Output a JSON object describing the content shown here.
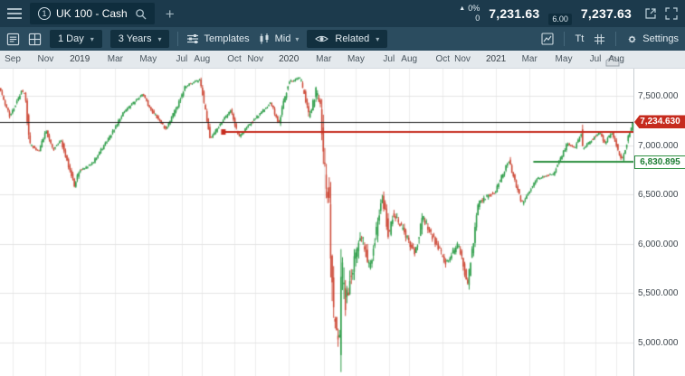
{
  "topbar": {
    "tab_number": "1",
    "instrument": "UK 100 - Cash",
    "add_tab": "+",
    "up_arrow": "▲",
    "change_pct": "0%",
    "change_points": "0",
    "sell_price": "7,231.63",
    "spread": "6.00",
    "buy_price": "7,237.63"
  },
  "toolbar": {
    "interval": "1 Day",
    "range": "3 Years",
    "templates_label": "Templates",
    "price_type_label": "Mid",
    "related_label": "Related",
    "text_tool_label": "Tt",
    "settings_label": "Settings",
    "chevron_down": "▾"
  },
  "chart_data": {
    "type": "candlestick",
    "instrument": "UK 100 - Cash",
    "interval": "1 Day",
    "range": "3 Years",
    "price_basis": "Mid",
    "x_labels": [
      {
        "label": "Sep",
        "t": 0.02
      },
      {
        "label": "Nov",
        "t": 0.072
      },
      {
        "label": "2019",
        "t": 0.126,
        "year": true
      },
      {
        "label": "Mar",
        "t": 0.182
      },
      {
        "label": "May",
        "t": 0.234
      },
      {
        "label": "Jul",
        "t": 0.287
      },
      {
        "label": "Aug",
        "t": 0.319
      },
      {
        "label": "Oct",
        "t": 0.37
      },
      {
        "label": "Nov",
        "t": 0.403
      },
      {
        "label": "2020",
        "t": 0.456,
        "year": true
      },
      {
        "label": "Mar",
        "t": 0.511
      },
      {
        "label": "May",
        "t": 0.562
      },
      {
        "label": "Jul",
        "t": 0.614
      },
      {
        "label": "Aug",
        "t": 0.646
      },
      {
        "label": "Oct",
        "t": 0.699
      },
      {
        "label": "Nov",
        "t": 0.73
      },
      {
        "label": "2021",
        "t": 0.783,
        "year": true
      },
      {
        "label": "Mar",
        "t": 0.836
      },
      {
        "label": "May",
        "t": 0.89
      },
      {
        "label": "Jul",
        "t": 0.94
      },
      {
        "label": "Aug",
        "t": 0.973
      }
    ],
    "y_ticks": [
      {
        "label": "7,500.000",
        "value": 7500
      },
      {
        "label": "7,000.000",
        "value": 7000
      },
      {
        "label": "6,500.000",
        "value": 6500
      },
      {
        "label": "6,000.000",
        "value": 6000
      },
      {
        "label": "5,500.000",
        "value": 5500
      },
      {
        "label": "5,000.000",
        "value": 5000
      }
    ],
    "y_range": [
      4660,
      7775
    ],
    "levels": {
      "current_price": {
        "value": 7234.63,
        "label": "7,234.630"
      },
      "resistance_line": {
        "value": 7130,
        "from_t": 0.352
      },
      "support_line": {
        "value": 6830.895,
        "label": "6,830.895",
        "from_t": 0.842
      }
    },
    "colors": {
      "up": "#2f9e4a",
      "down": "#cd4a38",
      "grid_v": "#ededed",
      "grid_h": "#e4e4e4",
      "current_line": "#1c1c1c",
      "resistance_line": "#c62b1e",
      "support_line": "#2c8f3f"
    },
    "anchors": [
      [
        0.0,
        7580
      ],
      [
        0.017,
        7290
      ],
      [
        0.035,
        7545
      ],
      [
        0.041,
        7510
      ],
      [
        0.048,
        7007
      ],
      [
        0.062,
        6939
      ],
      [
        0.074,
        7141
      ],
      [
        0.085,
        6948
      ],
      [
        0.097,
        7062
      ],
      [
        0.119,
        6584
      ],
      [
        0.125,
        6735
      ],
      [
        0.146,
        6809
      ],
      [
        0.177,
        7107
      ],
      [
        0.195,
        7324
      ],
      [
        0.227,
        7523
      ],
      [
        0.237,
        7381
      ],
      [
        0.263,
        7162
      ],
      [
        0.282,
        7408
      ],
      [
        0.294,
        7603
      ],
      [
        0.317,
        7660
      ],
      [
        0.333,
        7067
      ],
      [
        0.365,
        7356
      ],
      [
        0.378,
        7078
      ],
      [
        0.391,
        7182
      ],
      [
        0.429,
        7429
      ],
      [
        0.441,
        7214
      ],
      [
        0.457,
        7645
      ],
      [
        0.476,
        7675
      ],
      [
        0.489,
        7286
      ],
      [
        0.5,
        7534
      ],
      [
        0.507,
        7437
      ],
      [
        0.515,
        6581
      ],
      [
        0.521,
        6462
      ],
      [
        0.527,
        5237
      ],
      [
        0.537,
        4994
      ],
      [
        0.54,
        5816
      ],
      [
        0.547,
        5416
      ],
      [
        0.571,
        6115
      ],
      [
        0.585,
        5741
      ],
      [
        0.605,
        6484
      ],
      [
        0.615,
        6064
      ],
      [
        0.622,
        6320
      ],
      [
        0.657,
        5898
      ],
      [
        0.668,
        6280
      ],
      [
        0.705,
        5804
      ],
      [
        0.725,
        6001
      ],
      [
        0.739,
        5583
      ],
      [
        0.757,
        6421
      ],
      [
        0.783,
        6532
      ],
      [
        0.804,
        6842
      ],
      [
        0.825,
        6407
      ],
      [
        0.849,
        6659
      ],
      [
        0.875,
        6712
      ],
      [
        0.897,
        7019
      ],
      [
        0.908,
        6961
      ],
      [
        0.919,
        7123
      ],
      [
        0.921,
        6963
      ],
      [
        0.948,
        7134
      ],
      [
        0.955,
        7017
      ],
      [
        0.967,
        7125
      ],
      [
        0.983,
        6844
      ],
      [
        0.993,
        7078
      ],
      [
        1.0,
        7234.63
      ]
    ],
    "candles": 430
  }
}
